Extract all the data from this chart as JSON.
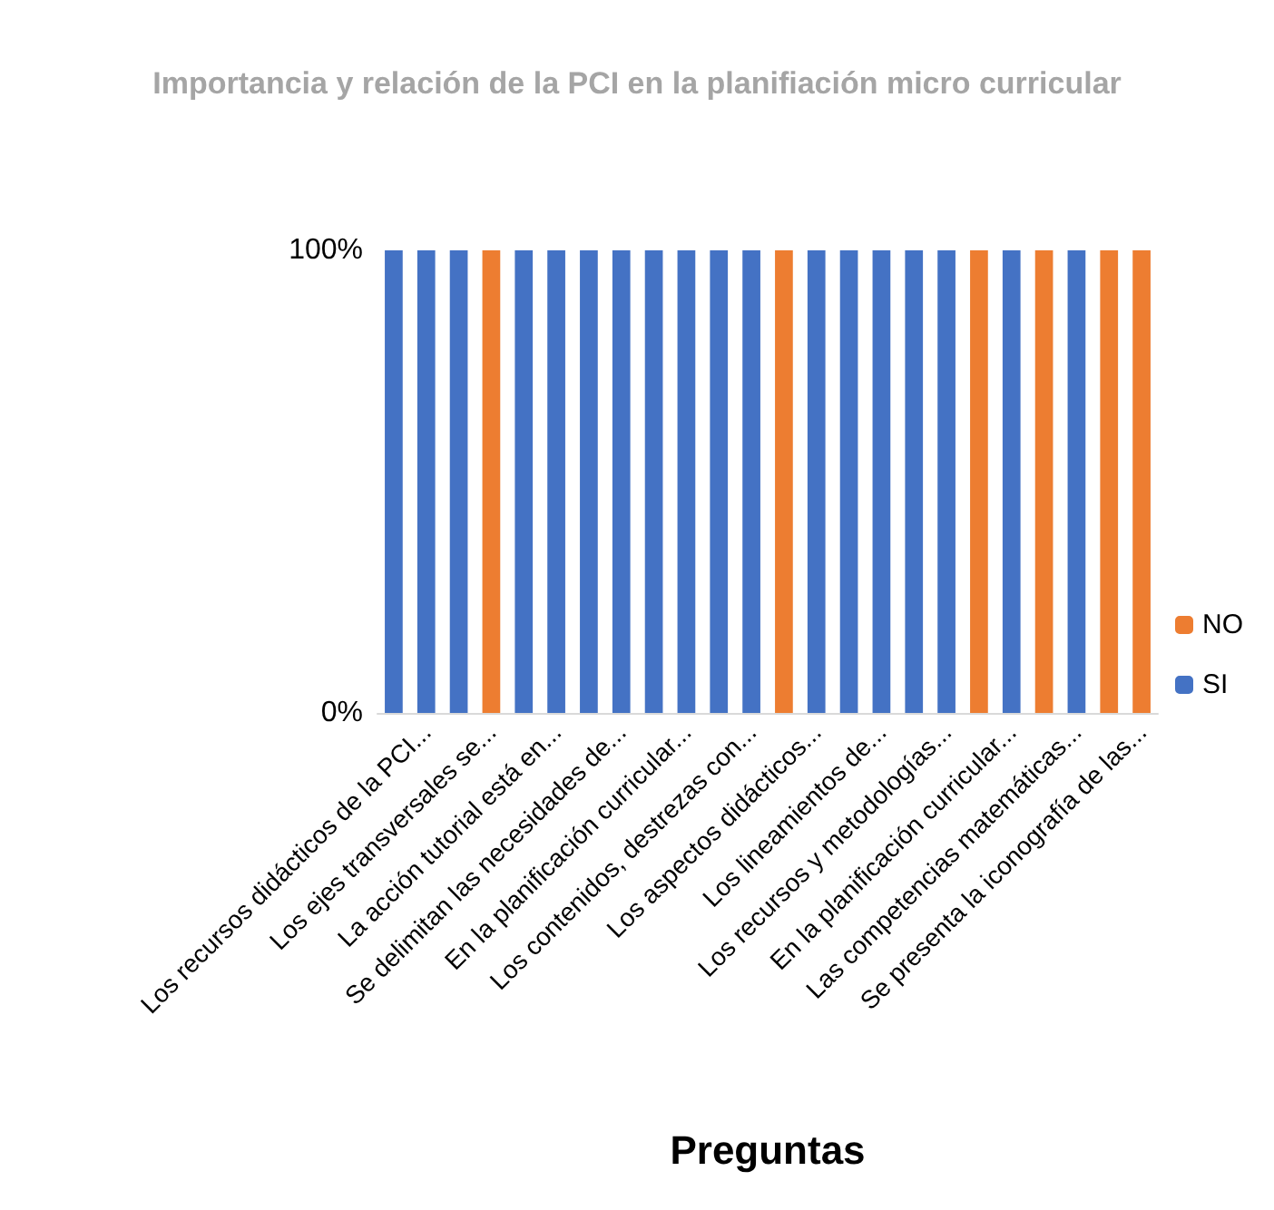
{
  "chart_data": {
    "type": "bar",
    "stacked": true,
    "title": "Importancia y relación de la PCI en la planifiación micro curricular",
    "xlabel": "Preguntas",
    "categories": [
      null,
      "Los recursos didácticos de la PCI...",
      null,
      "Los ejes transversales se...",
      null,
      "La acción tutorial está en...",
      null,
      "Se delimitan las necesidades de...",
      null,
      "En la planificación curricular...",
      null,
      "Los contenidos, destrezas con...",
      null,
      "Los aspectos didácticos...",
      null,
      "Los lineamientos de...",
      null,
      "Los recursos y metodologías...",
      null,
      "En la planificación curricular...",
      null,
      "Las competencias matemáticas...",
      null,
      "Se presenta la iconografía de las..."
    ],
    "series": [
      {
        "name": "SI",
        "color": "#4472c4",
        "values": [
          100,
          100,
          100,
          0,
          100,
          100,
          100,
          100,
          100,
          100,
          100,
          100,
          0,
          100,
          100,
          100,
          100,
          100,
          0,
          100,
          0,
          100,
          0,
          0
        ]
      },
      {
        "name": "NO",
        "color": "#ed7d31",
        "values": [
          0,
          0,
          0,
          100,
          0,
          0,
          0,
          0,
          0,
          0,
          0,
          0,
          100,
          0,
          0,
          0,
          0,
          0,
          100,
          0,
          100,
          0,
          100,
          100
        ]
      }
    ],
    "ylim": [
      0,
      100
    ],
    "yticks": [
      {
        "value": 0,
        "label": "0%"
      },
      {
        "value": 100,
        "label": "100%"
      }
    ],
    "grid": false,
    "legend": "bottom right"
  }
}
